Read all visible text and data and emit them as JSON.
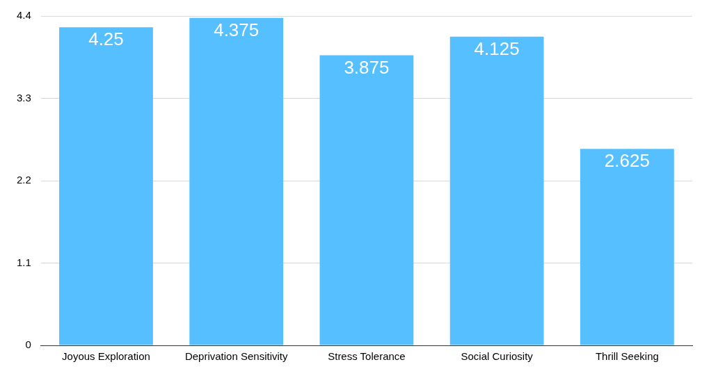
{
  "chart_data": {
    "type": "bar",
    "categories": [
      "Joyous Exploration",
      "Deprivation Sensitivity",
      "Stress Tolerance",
      "Social Curiosity",
      "Thrill Seeking"
    ],
    "values": [
      4.25,
      4.375,
      3.875,
      4.125,
      2.625
    ],
    "color": "#55bfff",
    "ylim": [
      0,
      4.4
    ],
    "yticks": [
      0,
      1.1,
      2.2,
      3.3,
      4.4
    ],
    "grid": "y",
    "data_labels": true
  }
}
